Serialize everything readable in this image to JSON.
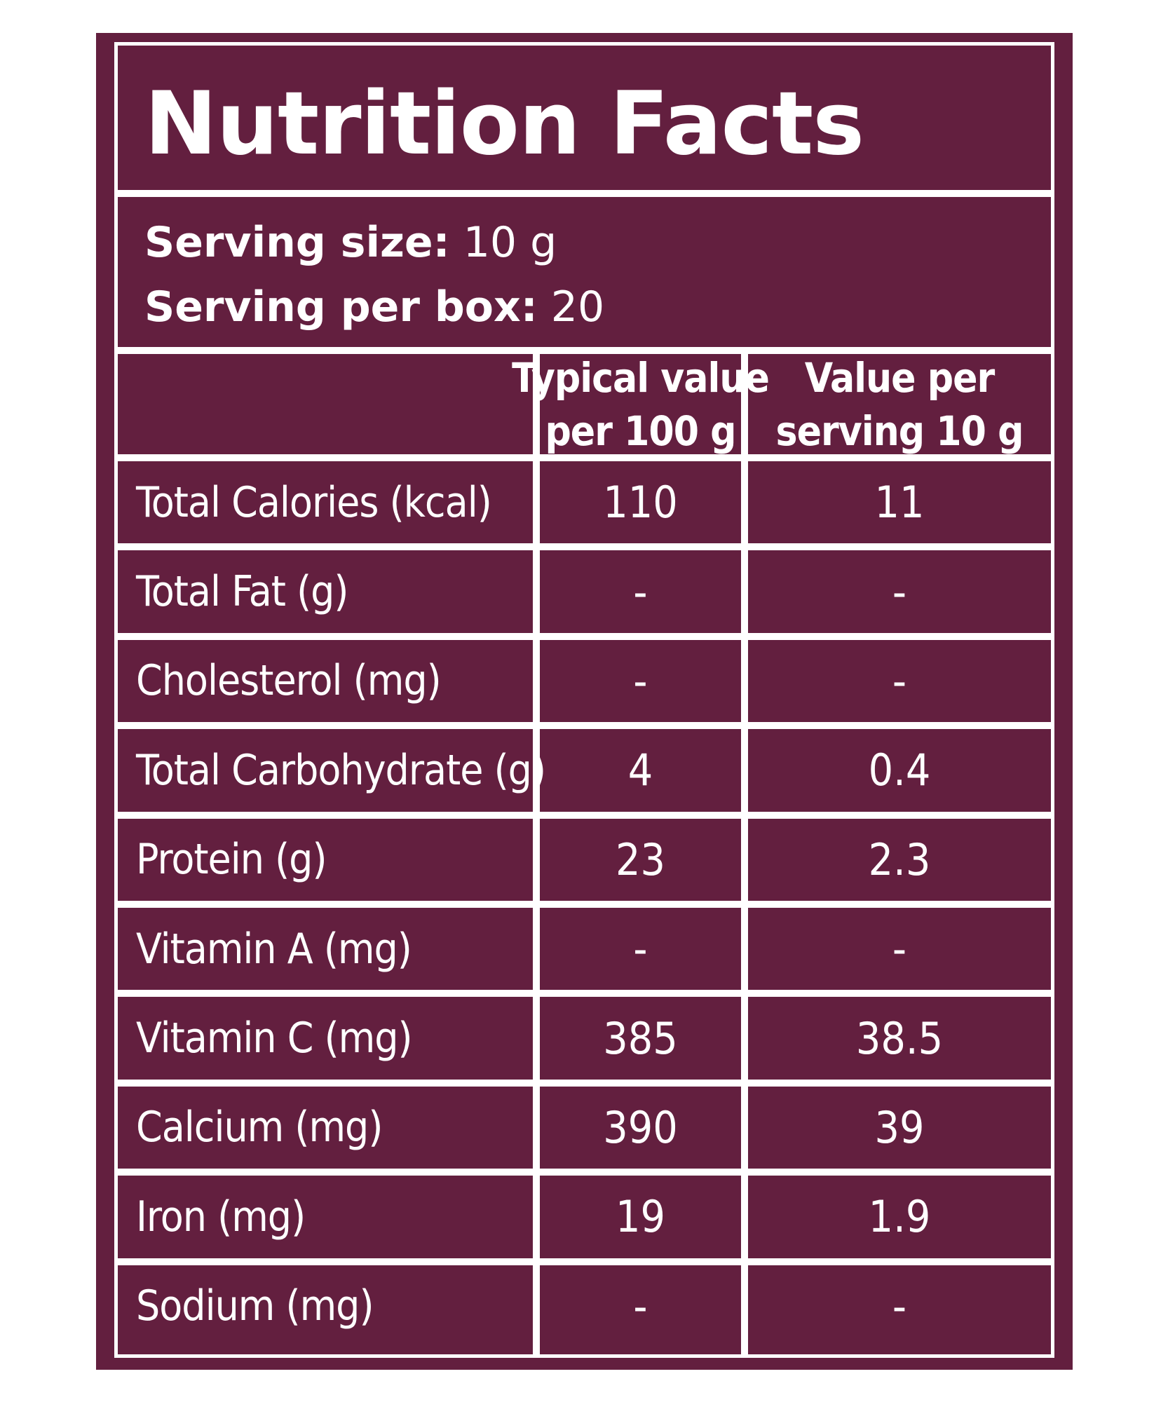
{
  "label": {
    "title": "Nutrition Facts",
    "serving_size_label": "Serving size:",
    "serving_size_value": "10 g",
    "servings_per_box_label": "Serving per box:",
    "servings_per_box_value": "20"
  },
  "table": {
    "header_col2_line1": "Typical value",
    "header_col2_line2": "per 100 g",
    "header_col3_line1": "Value per",
    "header_col3_line2": "serving 10 g",
    "rows": [
      {
        "nutrient": "Total Calories (kcal)",
        "per_100g": "110",
        "per_serving": "11"
      },
      {
        "nutrient": "Total Fat (g)",
        "per_100g": "-",
        "per_serving": "-"
      },
      {
        "nutrient": "Cholesterol (mg)",
        "per_100g": "-",
        "per_serving": "-"
      },
      {
        "nutrient": "Total Carbohydrate (g)",
        "per_100g": "4",
        "per_serving": "0.4"
      },
      {
        "nutrient": "Protein (g)",
        "per_100g": "23",
        "per_serving": "2.3"
      },
      {
        "nutrient": "Vitamin A (mg)",
        "per_100g": "-",
        "per_serving": "-"
      },
      {
        "nutrient": "Vitamin C (mg)",
        "per_100g": "385",
        "per_serving": "38.5"
      },
      {
        "nutrient": "Calcium (mg)",
        "per_100g": "390",
        "per_serving": "39"
      },
      {
        "nutrient": "Iron (mg)",
        "per_100g": "19",
        "per_serving": "1.9"
      },
      {
        "nutrient": "Sodium (mg)",
        "per_100g": "-",
        "per_serving": "-"
      }
    ]
  },
  "colors": {
    "background": "#631f3f",
    "lines": "#ffffff",
    "text": "#ffffff"
  }
}
